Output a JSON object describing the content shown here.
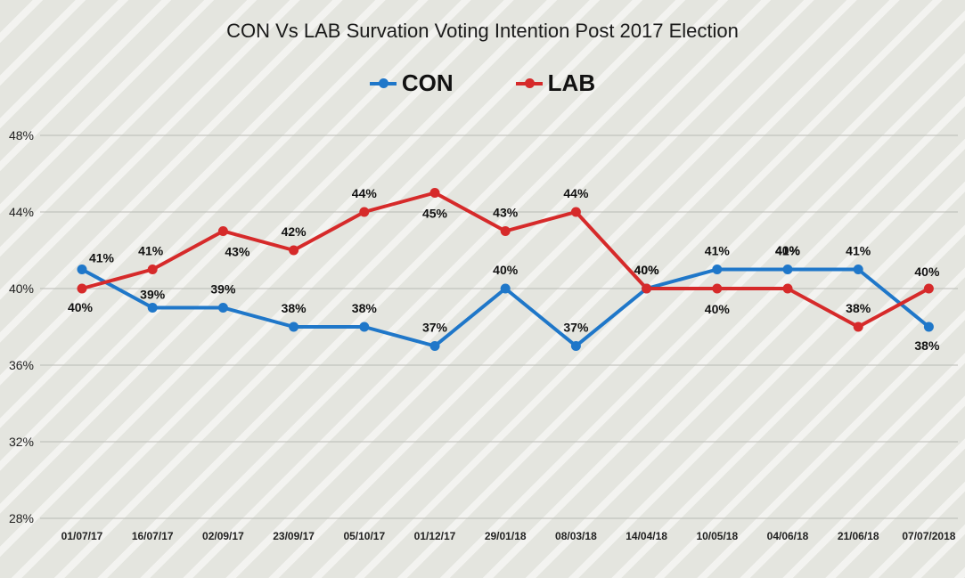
{
  "chart_data": {
    "type": "line",
    "title": "CON Vs LAB Survation Voting Intention Post 2017 Election",
    "categories": [
      "01/07/17",
      "16/07/17",
      "02/09/17",
      "23/09/17",
      "05/10/17",
      "01/12/17",
      "29/01/18",
      "08/03/18",
      "14/04/18",
      "10/05/18",
      "04/06/18",
      "21/06/18",
      "07/07/2018"
    ],
    "series": [
      {
        "name": "CON",
        "color": "#1f77c9",
        "values": [
          41,
          39,
          39,
          38,
          38,
          37,
          40,
          37,
          40,
          41,
          41,
          41,
          38
        ]
      },
      {
        "name": "LAB",
        "color": "#d62a2a",
        "values": [
          40,
          41,
          43,
          42,
          44,
          45,
          43,
          44,
          40,
          40,
          40,
          38,
          40
        ]
      }
    ],
    "ylim": [
      28,
      48
    ],
    "yticks": [
      28,
      32,
      36,
      40,
      44,
      48
    ],
    "ytick_labels": [
      "28%",
      "32%",
      "36%",
      "40%",
      "44%",
      "48%"
    ],
    "legend_position": "top-center",
    "grid": true
  }
}
